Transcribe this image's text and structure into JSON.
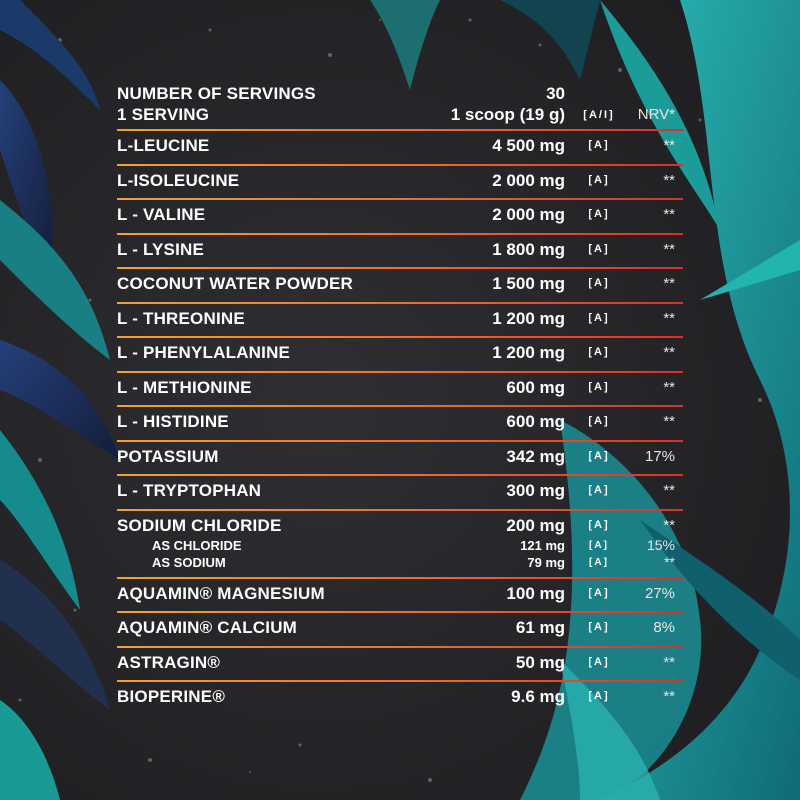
{
  "header": {
    "servings_label": "NUMBER OF SERVINGS",
    "servings_value": "30",
    "serving_label": "1 SERVING",
    "serving_value": "1 scoop (19 g)",
    "source_header": "[A/I]",
    "nrv_header": "NRV*"
  },
  "rows": [
    {
      "name": "L-LEUCINE",
      "amount": "4 500 mg",
      "source": "[A]",
      "nrv": "**"
    },
    {
      "name": "L-ISOLEUCINE",
      "amount": "2 000 mg",
      "source": "[A]",
      "nrv": "**"
    },
    {
      "name": "L - VALINE",
      "amount": "2 000 mg",
      "source": "[A]",
      "nrv": "**"
    },
    {
      "name": "L - LYSINE",
      "amount": "1 800 mg",
      "source": "[A]",
      "nrv": "**"
    },
    {
      "name": "COCONUT WATER POWDER",
      "amount": "1 500 mg",
      "source": "[A]",
      "nrv": "**"
    },
    {
      "name": "L - THREONINE",
      "amount": "1 200 mg",
      "source": "[A]",
      "nrv": "**"
    },
    {
      "name": "L - PHENYLALANINE",
      "amount": "1 200 mg",
      "source": "[A]",
      "nrv": "**"
    },
    {
      "name": "L - METHIONINE",
      "amount": "600 mg",
      "source": "[A]",
      "nrv": "**"
    },
    {
      "name": "L - HISTIDINE",
      "amount": "600 mg",
      "source": "[A]",
      "nrv": "**"
    },
    {
      "name": "POTASSIUM",
      "amount": "342 mg",
      "source": "[A]",
      "nrv": "17%"
    },
    {
      "name": "L - TRYPTOPHAN",
      "amount": "300 mg",
      "source": "[A]",
      "nrv": "**"
    },
    {
      "name": "SODIUM CHLORIDE",
      "amount": "200 mg",
      "source": "[A]",
      "nrv": "**",
      "subs": [
        {
          "name": "AS CHLORIDE",
          "amount": "121 mg",
          "source": "[A]",
          "nrv": "15%"
        },
        {
          "name": "AS SODIUM",
          "amount": "79 mg",
          "source": "[A]",
          "nrv": "**"
        }
      ]
    },
    {
      "name": "AQUAMIN® MAGNESIUM",
      "amount": "100 mg",
      "source": "[A]",
      "nrv": "27%"
    },
    {
      "name": "AQUAMIN® CALCIUM",
      "amount": "61 mg",
      "source": "[A]",
      "nrv": "8%"
    },
    {
      "name": "ASTRAGIN®",
      "amount": "50 mg",
      "source": "[A]",
      "nrv": "**"
    },
    {
      "name": "BIOPERINE®",
      "amount": "9.6 mg",
      "source": "[A]",
      "nrv": "**"
    }
  ],
  "colors": {
    "background": "#232326",
    "separator_start": "#f4a033",
    "separator_end": "#d8302c",
    "leaf_teal": "#1fa9a7",
    "leaf_deep": "#0e4d5c",
    "leaf_navy": "#1c2d55"
  }
}
